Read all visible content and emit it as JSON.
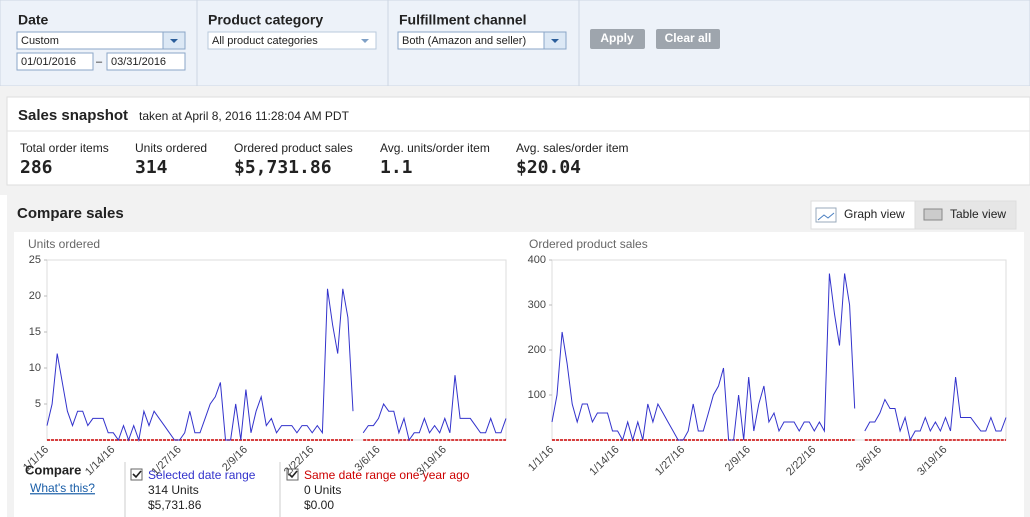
{
  "filters": [
    {
      "label": "Date",
      "select": "Custom",
      "from": "01/01/2016",
      "separator": "–",
      "to": "03/31/2016"
    },
    {
      "label": "Product category",
      "select": "All product categories"
    },
    {
      "label": "Fulfillment channel",
      "select": "Both (Amazon and seller)"
    }
  ],
  "buttons": [
    "Apply",
    "Clear all"
  ],
  "snapshot": {
    "title": "Sales snapshot",
    "subtitle": "taken at April 8, 2016 11:28:04 AM PDT",
    "metrics": [
      {
        "label": "Total order items",
        "value": "286"
      },
      {
        "label": "Units ordered",
        "value": "314"
      },
      {
        "label": "Ordered product sales",
        "value": "$5,731.86"
      },
      {
        "label": "Avg. units/order item",
        "value": "1.1"
      },
      {
        "label": "Avg. sales/order item",
        "value": "$20.04"
      }
    ]
  },
  "compare": {
    "title": "Compare sales",
    "views": [
      "Graph view",
      "Table view"
    ],
    "legend_title": "Compare",
    "help_link": "What's this?",
    "ranges": [
      {
        "units": "314 Units",
        "sales": "$5,731.86"
      },
      {
        "units": "0 Units",
        "sales": "$0.00"
      }
    ]
  },
  "chart_data": [
    {
      "type": "line",
      "title": "Units ordered",
      "categories": [
        "1/1/16",
        null,
        null,
        null,
        null,
        null,
        null,
        null,
        null,
        null,
        null,
        null,
        null,
        "1/14/16",
        null,
        null,
        null,
        null,
        null,
        null,
        null,
        null,
        null,
        null,
        null,
        null,
        "1/27/16",
        null,
        null,
        null,
        null,
        null,
        null,
        null,
        null,
        null,
        null,
        null,
        null,
        "2/9/16",
        null,
        null,
        null,
        null,
        null,
        null,
        null,
        null,
        null,
        null,
        null,
        null,
        "2/22/16",
        null,
        null,
        null,
        null,
        null,
        null,
        null,
        null,
        null,
        null,
        null,
        null,
        "3/6/16",
        null,
        null,
        null,
        null,
        null,
        null,
        null,
        null,
        null,
        null,
        null,
        null,
        "3/19/16",
        null,
        null,
        null,
        null,
        null,
        null,
        null,
        null,
        null,
        null,
        null,
        null
      ],
      "series": [
        {
          "name": "Selected date range",
          "color": "#3333cc",
          "values": [
            2,
            5,
            12,
            8,
            4,
            2,
            4,
            4,
            2,
            3,
            3,
            3,
            1,
            1,
            0,
            2,
            0,
            2,
            0,
            4,
            2,
            4,
            3,
            2,
            1,
            0,
            0,
            1,
            4,
            1,
            1,
            3,
            5,
            6,
            8,
            0,
            0,
            5,
            0,
            7,
            1,
            4,
            6,
            2,
            3,
            1,
            2,
            2,
            2,
            1,
            2,
            2,
            1,
            2,
            1,
            21,
            16,
            12,
            21,
            17,
            4,
            null,
            1,
            2,
            2,
            3,
            5,
            4,
            4,
            1,
            3,
            0,
            1,
            1,
            3,
            1,
            2,
            1,
            3,
            1,
            9,
            3,
            3,
            3,
            2,
            1,
            1,
            3,
            1,
            1,
            3
          ]
        },
        {
          "name": "Same date range one year ago",
          "color": "#cc0000",
          "values": [
            0,
            0,
            0,
            0,
            0,
            0,
            0,
            0,
            0,
            0,
            0,
            0,
            0,
            0,
            0,
            0,
            0,
            0,
            0,
            0,
            0,
            0,
            0,
            0,
            0,
            0,
            0,
            0,
            0,
            0,
            0,
            0,
            0,
            0,
            0,
            0,
            0,
            0,
            0,
            0,
            0,
            0,
            0,
            0,
            0,
            0,
            0,
            0,
            0,
            0,
            0,
            0,
            0,
            0,
            0,
            0,
            0,
            0,
            0,
            0,
            0,
            null,
            0,
            0,
            0,
            0,
            0,
            0,
            0,
            0,
            0,
            0,
            0,
            0,
            0,
            0,
            0,
            0,
            0,
            0,
            0,
            0,
            0,
            0,
            0,
            0,
            0,
            0,
            0,
            0,
            0
          ]
        }
      ],
      "ylim": [
        0,
        25
      ],
      "yticks": [
        5,
        10,
        15,
        20,
        25
      ]
    },
    {
      "type": "line",
      "title": "Ordered product sales",
      "categories": [
        "1/1/16",
        null,
        null,
        null,
        null,
        null,
        null,
        null,
        null,
        null,
        null,
        null,
        null,
        "1/14/16",
        null,
        null,
        null,
        null,
        null,
        null,
        null,
        null,
        null,
        null,
        null,
        null,
        "1/27/16",
        null,
        null,
        null,
        null,
        null,
        null,
        null,
        null,
        null,
        null,
        null,
        null,
        "2/9/16",
        null,
        null,
        null,
        null,
        null,
        null,
        null,
        null,
        null,
        null,
        null,
        null,
        "2/22/16",
        null,
        null,
        null,
        null,
        null,
        null,
        null,
        null,
        null,
        null,
        null,
        null,
        "3/6/16",
        null,
        null,
        null,
        null,
        null,
        null,
        null,
        null,
        null,
        null,
        null,
        null,
        "3/19/16",
        null,
        null,
        null,
        null,
        null,
        null,
        null,
        null,
        null,
        null,
        null,
        null
      ],
      "series": [
        {
          "color": "#3333cc",
          "values": [
            40,
            100,
            240,
            170,
            80,
            40,
            80,
            80,
            40,
            60,
            60,
            60,
            20,
            20,
            0,
            40,
            0,
            40,
            0,
            80,
            40,
            80,
            60,
            40,
            20,
            0,
            0,
            20,
            80,
            20,
            20,
            60,
            100,
            120,
            160,
            0,
            0,
            100,
            0,
            140,
            20,
            80,
            120,
            40,
            60,
            20,
            40,
            40,
            40,
            20,
            40,
            40,
            20,
            40,
            20,
            370,
            280,
            210,
            370,
            300,
            70,
            null,
            20,
            40,
            40,
            60,
            90,
            70,
            70,
            20,
            50,
            0,
            20,
            20,
            50,
            20,
            40,
            20,
            50,
            20,
            140,
            50,
            50,
            50,
            35,
            20,
            20,
            50,
            20,
            20,
            50
          ]
        },
        {
          "color": "#cc0000",
          "values": [
            0,
            0,
            0,
            0,
            0,
            0,
            0,
            0,
            0,
            0,
            0,
            0,
            0,
            0,
            0,
            0,
            0,
            0,
            0,
            0,
            0,
            0,
            0,
            0,
            0,
            0,
            0,
            0,
            0,
            0,
            0,
            0,
            0,
            0,
            0,
            0,
            0,
            0,
            0,
            0,
            0,
            0,
            0,
            0,
            0,
            0,
            0,
            0,
            0,
            0,
            0,
            0,
            0,
            0,
            0,
            0,
            0,
            0,
            0,
            0,
            0,
            null,
            0,
            0,
            0,
            0,
            0,
            0,
            0,
            0,
            0,
            0,
            0,
            0,
            0,
            0,
            0,
            0,
            0,
            0,
            0,
            0,
            0,
            0,
            0,
            0,
            0,
            0,
            0,
            0,
            0
          ]
        }
      ],
      "ylim": [
        0,
        400
      ],
      "yticks": [
        100,
        200,
        300,
        400
      ]
    }
  ]
}
